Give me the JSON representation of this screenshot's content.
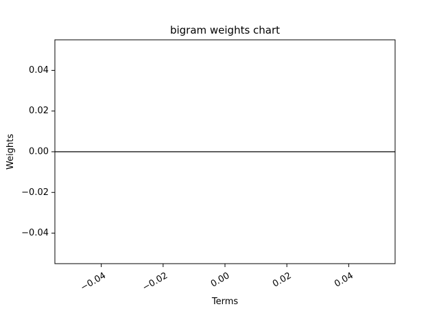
{
  "chart_data": {
    "type": "bar",
    "title": "bigram weights chart",
    "xlabel": "Terms",
    "ylabel": "Weights",
    "categories": [],
    "values": [],
    "xlim": [
      -0.055,
      0.055
    ],
    "ylim": [
      -0.055,
      0.055
    ],
    "xticks": [
      -0.04,
      -0.02,
      0.0,
      0.02,
      0.04
    ],
    "xtick_labels": [
      "−0.04",
      "−0.02",
      "0.00",
      "0.02",
      "0.04"
    ],
    "yticks": [
      0.04,
      0.02,
      0.0,
      -0.02,
      -0.04
    ],
    "ytick_labels": [
      "0.04",
      "0.02",
      "0.00",
      "−0.02",
      "−0.04"
    ],
    "reference_line_y": 0,
    "grid": false,
    "xtick_rotation_deg": 30
  }
}
